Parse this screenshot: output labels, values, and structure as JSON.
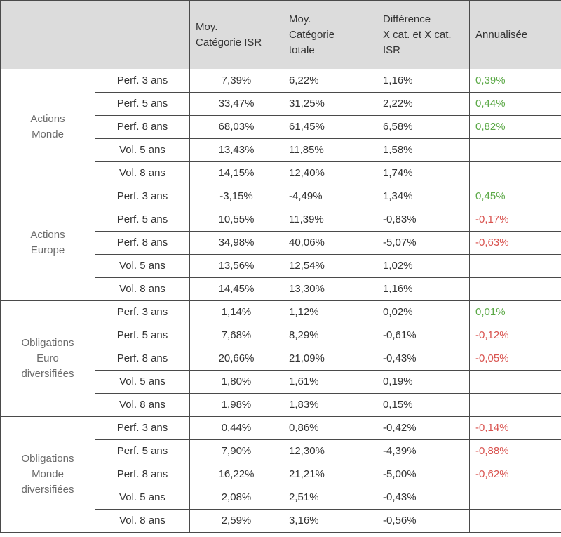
{
  "header": {
    "col0": "",
    "col1": "",
    "col2": "Moy.\nCatégorie ISR",
    "col3": "Moy.\nCatégorie\ntotale",
    "col4": "Différence\nX cat. et X cat.\nISR",
    "col5": "Annualisée"
  },
  "colors": {
    "positive": "#5aa845",
    "negative": "#d9534f",
    "header_bg": "#dcdcdc"
  },
  "groups": [
    {
      "name": "Actions\nMonde",
      "rows": [
        {
          "metric": "Perf. 3 ans",
          "isr": "7,39%",
          "total": "6,22%",
          "diff": "1,16%",
          "ann": "0,39%",
          "sign": "pos"
        },
        {
          "metric": "Perf. 5 ans",
          "isr": "33,47%",
          "total": "31,25%",
          "diff": "2,22%",
          "ann": "0,44%",
          "sign": "pos"
        },
        {
          "metric": "Perf. 8 ans",
          "isr": "68,03%",
          "total": "61,45%",
          "diff": "6,58%",
          "ann": "0,82%",
          "sign": "pos"
        },
        {
          "metric": "Vol. 5 ans",
          "isr": "13,43%",
          "total": "11,85%",
          "diff": "1,58%",
          "ann": "",
          "sign": ""
        },
        {
          "metric": "Vol. 8 ans",
          "isr": "14,15%",
          "total": "12,40%",
          "diff": "1,74%",
          "ann": "",
          "sign": ""
        }
      ]
    },
    {
      "name": "Actions\nEurope",
      "rows": [
        {
          "metric": "Perf. 3 ans",
          "isr": "-3,15%",
          "total": "-4,49%",
          "diff": "1,34%",
          "ann": "0,45%",
          "sign": "pos"
        },
        {
          "metric": "Perf. 5 ans",
          "isr": "10,55%",
          "total": "11,39%",
          "diff": "-0,83%",
          "ann": "-0,17%",
          "sign": "neg"
        },
        {
          "metric": "Perf. 8 ans",
          "isr": "34,98%",
          "total": "40,06%",
          "diff": "-5,07%",
          "ann": "-0,63%",
          "sign": "neg"
        },
        {
          "metric": "Vol. 5 ans",
          "isr": "13,56%",
          "total": "12,54%",
          "diff": "1,02%",
          "ann": "",
          "sign": ""
        },
        {
          "metric": "Vol. 8 ans",
          "isr": "14,45%",
          "total": "13,30%",
          "diff": "1,16%",
          "ann": "",
          "sign": ""
        }
      ]
    },
    {
      "name": "Obligations\nEuro\ndiversifiées",
      "rows": [
        {
          "metric": "Perf. 3 ans",
          "isr": "1,14%",
          "total": "1,12%",
          "diff": "0,02%",
          "ann": "0,01%",
          "sign": "pos"
        },
        {
          "metric": "Perf. 5 ans",
          "isr": "7,68%",
          "total": "8,29%",
          "diff": "-0,61%",
          "ann": "-0,12%",
          "sign": "neg"
        },
        {
          "metric": "Perf. 8 ans",
          "isr": "20,66%",
          "total": "21,09%",
          "diff": "-0,43%",
          "ann": "-0,05%",
          "sign": "neg"
        },
        {
          "metric": "Vol. 5 ans",
          "isr": "1,80%",
          "total": "1,61%",
          "diff": "0,19%",
          "ann": "",
          "sign": ""
        },
        {
          "metric": "Vol. 8 ans",
          "isr": "1,98%",
          "total": "1,83%",
          "diff": "0,15%",
          "ann": "",
          "sign": ""
        }
      ]
    },
    {
      "name": "Obligations\nMonde\ndiversifiées",
      "rows": [
        {
          "metric": "Perf. 3 ans",
          "isr": "0,44%",
          "total": "0,86%",
          "diff": "-0,42%",
          "ann": "-0,14%",
          "sign": "neg"
        },
        {
          "metric": "Perf. 5 ans",
          "isr": "7,90%",
          "total": "12,30%",
          "diff": "-4,39%",
          "ann": "-0,88%",
          "sign": "neg"
        },
        {
          "metric": "Perf. 8 ans",
          "isr": "16,22%",
          "total": "21,21%",
          "diff": "-5,00%",
          "ann": "-0,62%",
          "sign": "neg"
        },
        {
          "metric": "Vol. 5 ans",
          "isr": "2,08%",
          "total": "2,51%",
          "diff": "-0,43%",
          "ann": "",
          "sign": ""
        },
        {
          "metric": "Vol. 8 ans",
          "isr": "2,59%",
          "total": "3,16%",
          "diff": "-0,56%",
          "ann": "",
          "sign": ""
        }
      ]
    }
  ]
}
